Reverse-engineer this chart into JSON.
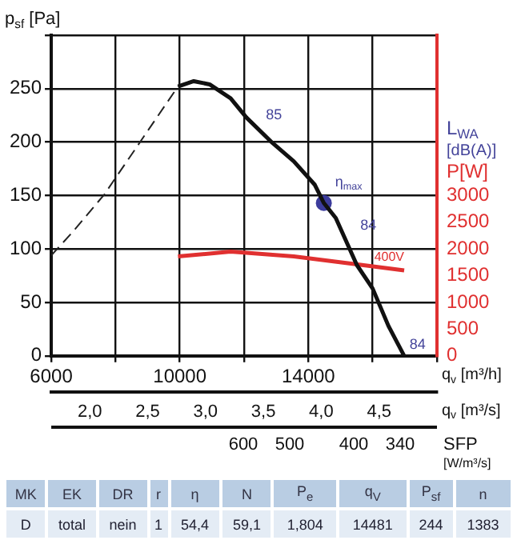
{
  "chart_data": {
    "type": "line",
    "ylabel": "p$_{sf}$ [Pa]",
    "y2label": "P[W]",
    "xlabel": "q$_{v}$ [m³/h]",
    "x2label": "q$_{v}$ [m³/s]",
    "xlim": [
      6000,
      18000
    ],
    "xticks": [
      6000,
      {
        "value": 8000,
        "label": null
      },
      10000,
      {
        "value": 12000,
        "label": null
      },
      14000,
      {
        "value": 16000,
        "label": null
      },
      {
        "value": 18000,
        "label": null
      }
    ],
    "x2lim": [
      1.667,
      5
    ],
    "x2ticks": [
      {
        "value": 2,
        "label": "2,0"
      },
      {
        "value": 2.5,
        "label": "2,5"
      },
      {
        "value": 3,
        "label": "3,0"
      },
      {
        "value": 3.5,
        "label": "3,5"
      },
      {
        "value": 4,
        "label": "4,0"
      },
      {
        "value": 4.5,
        "label": "4,5"
      }
    ],
    "ylim": [
      0,
      300
    ],
    "yticks": [
      0,
      50,
      100,
      150,
      200,
      250,
      {
        "value": 300,
        "label": null
      }
    ],
    "y2lim": [
      0,
      6000
    ],
    "y2ticks": [
      0,
      500,
      1000,
      1500,
      2000,
      2500,
      3000
    ],
    "grid": true,
    "legend": false,
    "series": [
      {
        "color": "#111111",
        "line_style": "solid",
        "marker": "none",
        "x": [
          9943,
          10434,
          10925,
          11580,
          12071,
          12890,
          13545,
          14200,
          14480,
          14852,
          15507,
          15998,
          16490,
          16980
        ],
        "values": [
          252,
          257,
          254,
          241,
          223,
          199,
          182,
          160,
          143,
          129,
          85,
          63,
          28,
          0
        ]
      },
      {
        "color": "#222222",
        "line_style": "dashed",
        "marker": "none",
        "x": [
          6000,
          6670,
          7650,
          9943
        ],
        "values": [
          94,
          116,
          151,
          252
        ]
      },
      {
        "name": "400V",
        "axis": "y2",
        "color": "#e03030",
        "line_style": "solid",
        "marker": "none",
        "x": [
          9943,
          11580,
          13545,
          15670,
          16980
        ],
        "values": [
          1860,
          1950,
          1860,
          1700,
          1600
        ]
      },
      {
        "type": "scatter",
        "color": "#3c3c9c",
        "marker": "circle",
        "x": [
          14480
        ],
        "values": [
          143
        ]
      }
    ],
    "annotations": [
      "L$_{WA}$",
      "[dB(A)]",
      "SFP [W/m³/s]",
      {
        "text": "85",
        "x": 12330,
        "y": 225
      },
      {
        "text": "84",
        "x": 15270,
        "y": 122
      },
      {
        "text": "84",
        "x": 16800,
        "y": 10
      },
      {
        "text": "η$_{max}$",
        "x": 14480,
        "y": 162
      },
      "600",
      "500",
      "400",
      "340",
      "MK",
      "EK",
      "DR",
      "r",
      "η",
      "N",
      "P$_{e}$",
      "q$_{V}$",
      "P$_{sf}$",
      "n",
      "D",
      "total",
      "nein",
      "1",
      "54,4",
      "59,1",
      "1,804",
      "14481",
      "244",
      "1383"
    ]
  }
}
